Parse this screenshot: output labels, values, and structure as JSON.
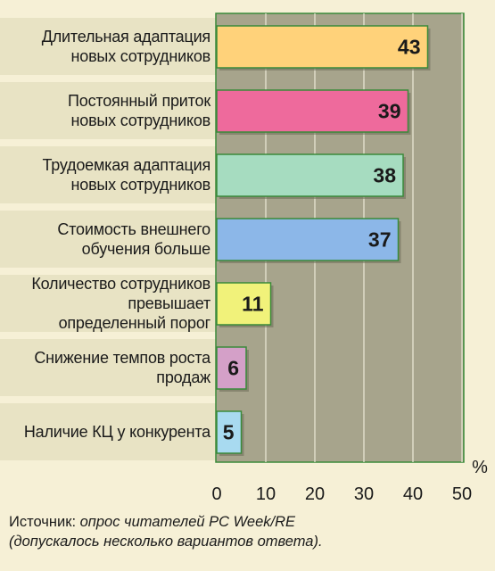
{
  "chart_data": {
    "type": "bar",
    "orientation": "horizontal",
    "categories": [
      "Длительная адаптация\nновых сотрудников",
      "Постоянный приток\nновых сотрудников",
      "Трудоемкая адаптация\nновых сотрудников",
      "Стоимость внешнего\nобучения больше",
      "Количество сотрудников\nпревышает\nопределенный порог",
      "Снижение темпов роста\nпродаж",
      "Наличие КЦ у конкурента"
    ],
    "values": [
      43,
      39,
      38,
      37,
      11,
      6,
      5
    ],
    "bar_colors": [
      "#ffd27a",
      "#ee6a9c",
      "#a6dcc0",
      "#8cb7e8",
      "#f1f27a",
      "#d4a0c8",
      "#a8daf0"
    ],
    "xlim": [
      0,
      50
    ],
    "xticks": [
      0,
      10,
      20,
      30,
      40,
      50
    ],
    "unit_label": "%",
    "grid": true,
    "plot_background": "#a7a48c",
    "row_band_color": "#e8e3c4"
  },
  "footer": {
    "source_prefix": "Источник:",
    "source_text": " опрос читателей PC Week/RE\n(допускалось несколько вариантов ответа)."
  }
}
